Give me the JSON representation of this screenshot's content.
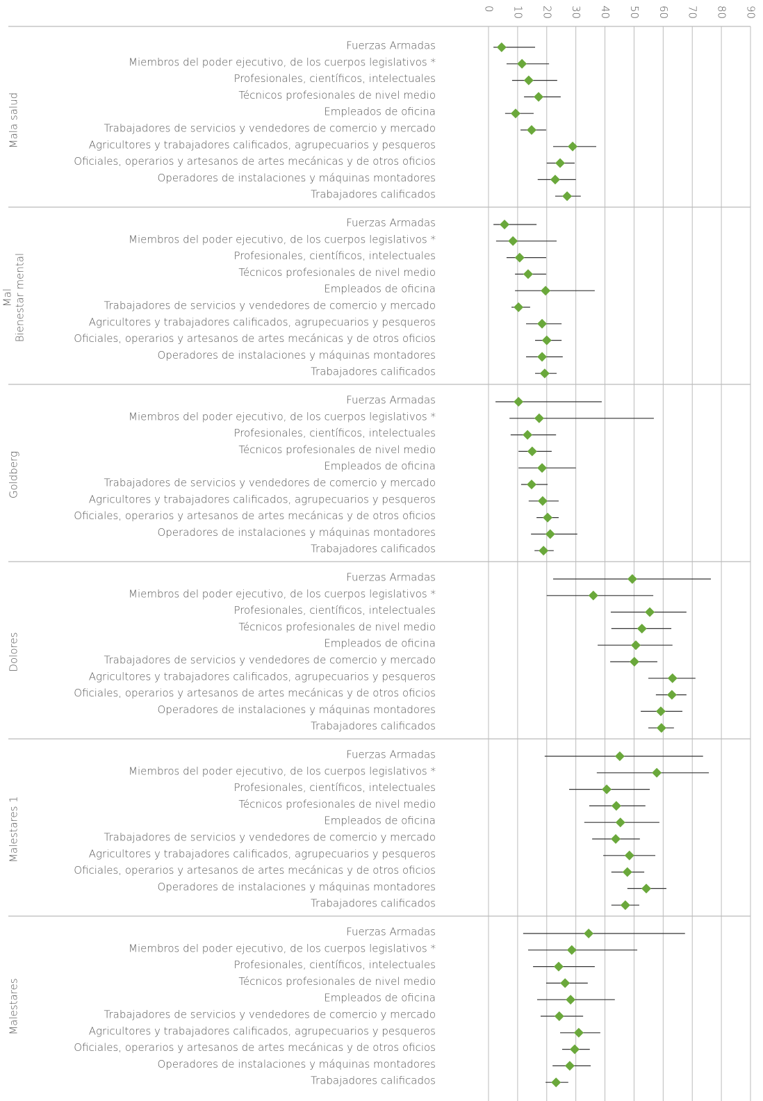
{
  "chart_data": {
    "type": "dot",
    "categories": [
      "Fuerzas Armadas",
      "Miembros del poder ejecutivo, de los cuerpos legislativos *",
      "Profesionales, científicos, intelectuales",
      "Técnicos profesionales de nivel medio",
      "Empleados de oficina",
      "Trabajadores de servicios y vendedores de comercio y mercado",
      "Agricultores y trabajadores calificados, agrupecuarios y pesqueros",
      "Oficiales, operarios y artesanos de artes mecánicas y de otros oficios",
      "Operadores de instalaciones y máquinas montadores",
      "Trabajadores calificados"
    ],
    "xlim": [
      0,
      90
    ],
    "xticks": [
      0,
      10,
      20,
      30,
      40,
      50,
      60,
      70,
      80,
      90
    ],
    "grid": true,
    "color": "#6aa83b",
    "panels": [
      {
        "name": [
          "Mala salud"
        ],
        "values": [
          4.5,
          11.5,
          13.8,
          17.2,
          9.3,
          14.8,
          28.9,
          24.6,
          22.9,
          27
        ],
        "lower": [
          1.7,
          6.2,
          8.1,
          12.2,
          5.7,
          11,
          22.2,
          20,
          16.9,
          22.9
        ],
        "upper": [
          16,
          20.8,
          23.6,
          24.8,
          15.5,
          19.8,
          37,
          29.6,
          30,
          31.7
        ]
      },
      {
        "name": [
          "Mal",
          "Bienestar mental"
        ],
        "values": [
          5.5,
          8.4,
          10.7,
          13.6,
          19.6,
          10.3,
          18.4,
          20,
          18.4,
          19.3
        ],
        "lower": [
          1.7,
          2.6,
          6.2,
          9.1,
          9.1,
          7.9,
          12.9,
          16,
          12.9,
          16
        ],
        "upper": [
          16.5,
          23.4,
          19.8,
          19.8,
          36.5,
          14.3,
          25.1,
          25.1,
          25.5,
          23.4
        ]
      },
      {
        "name": [
          "Goldberg"
        ],
        "values": [
          10.3,
          17.4,
          13.4,
          15,
          18.4,
          14.8,
          18.6,
          20.3,
          21.2,
          18.9
        ],
        "lower": [
          2.4,
          7.2,
          7.6,
          10.3,
          10.3,
          11.2,
          13.8,
          16.5,
          14.6,
          15.8
        ],
        "upper": [
          38.9,
          56.8,
          23.2,
          21.7,
          30,
          20.3,
          24.1,
          24.1,
          30.5,
          22.4
        ]
      },
      {
        "name": [
          "Dolores"
        ],
        "values": [
          49.4,
          36,
          55.4,
          52.7,
          50.6,
          50.1,
          63.2,
          63,
          59.2,
          59.4
        ],
        "lower": [
          22.2,
          20,
          42,
          42.2,
          37.5,
          41.8,
          54.9,
          57.5,
          52.3,
          54.9
        ],
        "upper": [
          76.4,
          56.6,
          68,
          62.8,
          63.2,
          58,
          71.1,
          68,
          66.6,
          63.7
        ]
      },
      {
        "name": [
          "Malestares 1"
        ],
        "values": [
          45.1,
          57.8,
          40.6,
          43.9,
          45.3,
          43.7,
          48.4,
          47.7,
          54.2,
          47
        ],
        "lower": [
          19.3,
          37.2,
          27.7,
          34.6,
          32.9,
          35.6,
          39.4,
          42.2,
          47.7,
          42.2
        ],
        "upper": [
          73.7,
          75.7,
          55.4,
          53.9,
          58.7,
          52,
          57.3,
          53.5,
          61.1,
          51.8
        ]
      },
      {
        "name": [
          "Malestares"
        ],
        "values": [
          34.4,
          28.6,
          24.1,
          26.3,
          28.2,
          24.3,
          31,
          29.6,
          27.9,
          23.2
        ],
        "lower": [
          11.9,
          13.6,
          15.3,
          19.8,
          16.7,
          17.9,
          24.6,
          25.3,
          22,
          19.6
        ],
        "upper": [
          67.5,
          51.1,
          36.5,
          34.1,
          43.4,
          32.5,
          38.4,
          34.8,
          35.1,
          27.4
        ]
      }
    ]
  }
}
